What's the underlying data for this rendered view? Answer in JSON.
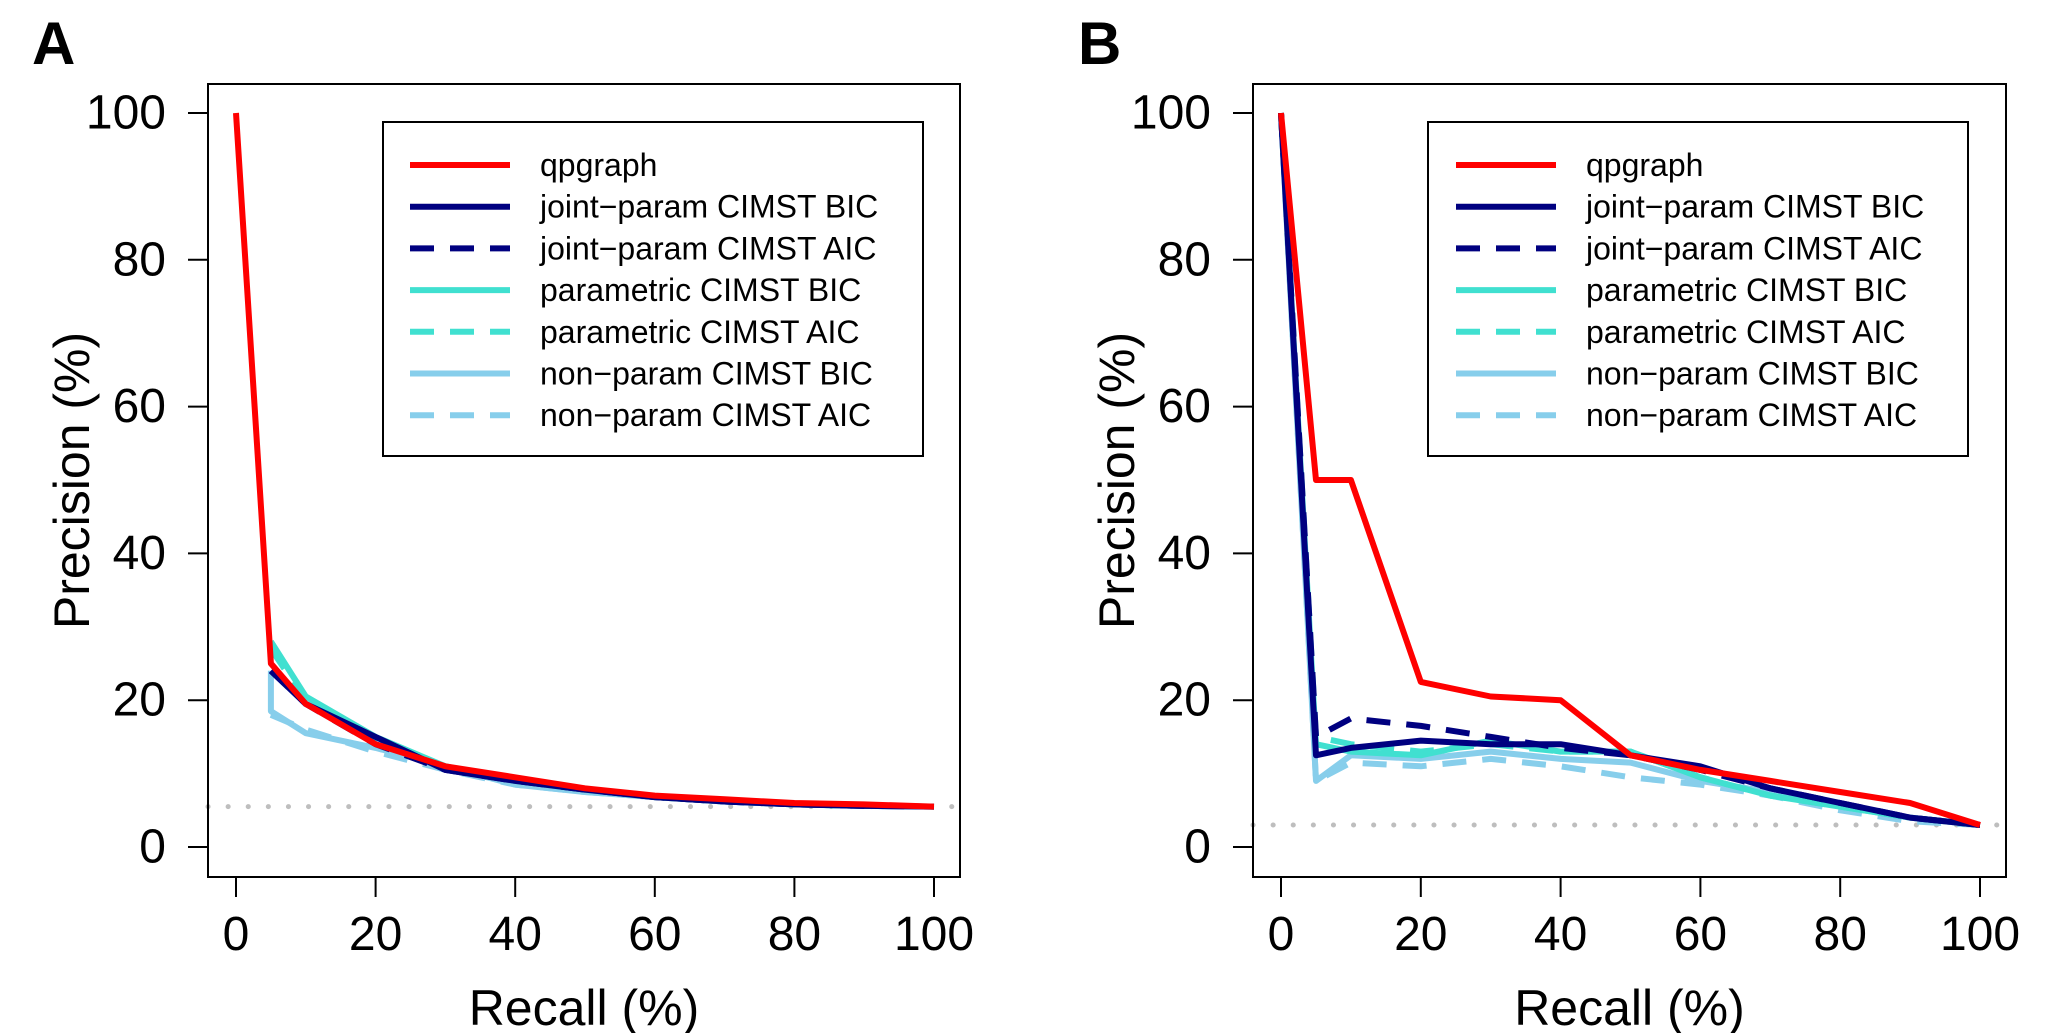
{
  "chart_data": [
    {
      "type": "line",
      "panel_label": "A",
      "xlabel": "Recall (%)",
      "ylabel": "Precision (%)",
      "xlim": [
        0,
        100
      ],
      "ylim": [
        0,
        100
      ],
      "xticks": [
        "0",
        "20",
        "40",
        "60",
        "80",
        "100"
      ],
      "yticks": [
        "0",
        "20",
        "40",
        "60",
        "80",
        "100"
      ],
      "legend_position": "top-right",
      "baseline": 5.5,
      "series": [
        {
          "name": "qpgraph",
          "color": "#FF0000",
          "dash": "solid",
          "x": [
            0,
            5,
            10,
            20,
            30,
            40,
            50,
            60,
            70,
            80,
            90,
            100
          ],
          "y": [
            100,
            25,
            19.5,
            14,
            11,
            9.5,
            8,
            7,
            6.5,
            6,
            5.8,
            5.5
          ]
        },
        {
          "name": "joint−param CIMST BIC",
          "color": "#000080",
          "dash": "solid",
          "x": [
            5,
            10,
            20,
            30,
            40,
            50,
            60,
            70,
            80,
            90,
            100
          ],
          "y": [
            24,
            19.5,
            15,
            10.5,
            9,
            7.8,
            6.8,
            6.2,
            5.8,
            5.6,
            5.5
          ]
        },
        {
          "name": "joint−param CIMST AIC",
          "color": "#000080",
          "dash": "dashed",
          "x": [
            5,
            10,
            20,
            30,
            40,
            50,
            60,
            70,
            80,
            90,
            100
          ],
          "y": [
            24,
            19.5,
            14,
            10.5,
            9,
            7.8,
            6.8,
            6.2,
            5.8,
            5.6,
            5.5
          ]
        },
        {
          "name": "parametric CIMST BIC",
          "color": "#40E0D0",
          "dash": "solid",
          "x": [
            5,
            10,
            20,
            30,
            40,
            50,
            60,
            70,
            80,
            90,
            100
          ],
          "y": [
            28,
            20.5,
            15,
            11,
            9,
            7.8,
            6.8,
            6.2,
            5.8,
            5.6,
            5.5
          ]
        },
        {
          "name": "parametric CIMST AIC",
          "color": "#40E0D0",
          "dash": "dashed",
          "x": [
            5,
            10,
            20,
            30,
            40,
            50,
            60,
            70,
            80,
            90,
            100
          ],
          "y": [
            27,
            20,
            14.5,
            11,
            9,
            7.8,
            6.8,
            6.2,
            5.8,
            5.6,
            5.5
          ]
        },
        {
          "name": "non−param CIMST BIC",
          "color": "#87CEEB",
          "dash": "solid",
          "x": [
            5,
            5,
            10,
            20,
            30,
            40,
            50,
            60,
            70,
            80,
            90,
            100
          ],
          "y": [
            24,
            18.5,
            15.5,
            13.5,
            11,
            8.5,
            7.5,
            6.8,
            6.2,
            5.8,
            5.6,
            5.5
          ]
        },
        {
          "name": "non−param CIMST AIC",
          "color": "#87CEEB",
          "dash": "dashed",
          "x": [
            5,
            10,
            20,
            30,
            40,
            50,
            60,
            70,
            80,
            90,
            100
          ],
          "y": [
            18,
            16,
            13,
            10.5,
            8.5,
            7.5,
            6.8,
            6.2,
            5.8,
            5.6,
            5.5
          ]
        }
      ]
    },
    {
      "type": "line",
      "panel_label": "B",
      "xlabel": "Recall (%)",
      "ylabel": "Precision (%)",
      "xlim": [
        0,
        100
      ],
      "ylim": [
        0,
        100
      ],
      "xticks": [
        "0",
        "20",
        "40",
        "60",
        "80",
        "100"
      ],
      "yticks": [
        "0",
        "20",
        "40",
        "60",
        "80",
        "100"
      ],
      "legend_position": "top-right",
      "baseline": 3,
      "series": [
        {
          "name": "qpgraph",
          "color": "#FF0000",
          "dash": "solid",
          "x": [
            0,
            5,
            10,
            20,
            30,
            40,
            50,
            60,
            70,
            80,
            90,
            100
          ],
          "y": [
            100,
            50,
            50,
            22.5,
            20.5,
            20,
            12.5,
            10.5,
            9,
            7.5,
            6,
            3
          ]
        },
        {
          "name": "joint−param CIMST BIC",
          "color": "#000080",
          "dash": "solid",
          "x": [
            0,
            5,
            10,
            20,
            30,
            40,
            50,
            60,
            70,
            80,
            90,
            100
          ],
          "y": [
            100,
            12.5,
            13.5,
            14.5,
            14,
            14,
            12.5,
            11,
            8,
            6,
            4,
            3
          ]
        },
        {
          "name": "joint−param CIMST AIC",
          "color": "#000080",
          "dash": "dashed",
          "x": [
            0,
            5,
            10,
            20,
            30,
            40,
            50,
            60,
            70,
            80,
            90,
            100
          ],
          "y": [
            100,
            15,
            17.5,
            16.5,
            15,
            13.5,
            12.5,
            10.5,
            8,
            6,
            4,
            3
          ]
        },
        {
          "name": "parametric CIMST BIC",
          "color": "#40E0D0",
          "dash": "solid",
          "x": [
            0,
            5,
            10,
            20,
            30,
            40,
            50,
            60,
            70,
            80,
            90,
            100
          ],
          "y": [
            100,
            14,
            13,
            12.5,
            14.5,
            13,
            13,
            9.5,
            7,
            5.5,
            4,
            3
          ]
        },
        {
          "name": "parametric CIMST AIC",
          "color": "#40E0D0",
          "dash": "dashed",
          "x": [
            0,
            5,
            10,
            20,
            30,
            40,
            50,
            60,
            70,
            80,
            90,
            100
          ],
          "y": [
            100,
            15,
            14,
            13,
            14,
            13,
            13,
            9.5,
            7,
            5.5,
            4,
            3
          ]
        },
        {
          "name": "non−param CIMST BIC",
          "color": "#87CEEB",
          "dash": "solid",
          "x": [
            0,
            5,
            10,
            20,
            30,
            40,
            50,
            60,
            70,
            80,
            90,
            100
          ],
          "y": [
            100,
            9,
            12.5,
            12,
            13,
            12,
            11.5,
            9,
            7.5,
            5.5,
            4,
            3
          ]
        },
        {
          "name": "non−param CIMST AIC",
          "color": "#87CEEB",
          "dash": "dashed",
          "x": [
            0,
            5,
            10,
            20,
            30,
            40,
            50,
            60,
            70,
            80,
            90,
            100
          ],
          "y": [
            100,
            9,
            11.5,
            11,
            12,
            11,
            9.5,
            8.5,
            7,
            5,
            3.5,
            3
          ]
        }
      ]
    }
  ]
}
